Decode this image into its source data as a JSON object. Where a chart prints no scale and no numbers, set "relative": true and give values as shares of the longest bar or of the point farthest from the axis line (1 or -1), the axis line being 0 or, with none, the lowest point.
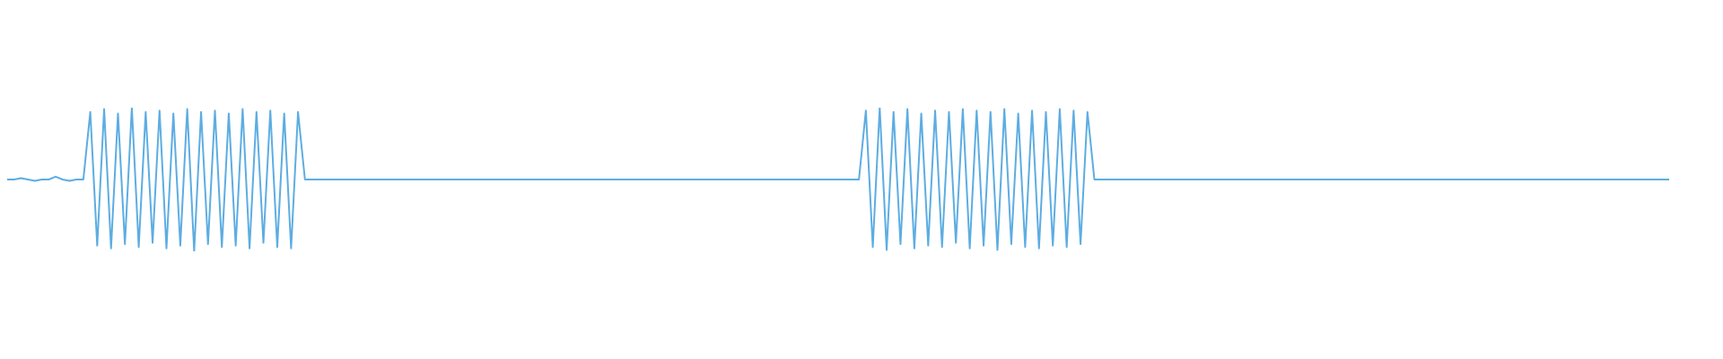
{
  "chart_data": {
    "type": "line",
    "relative": true,
    "color": "#5dade2",
    "legend": false,
    "marker": "none",
    "categories": [
      null,
      null,
      null,
      null,
      null,
      null,
      null,
      null,
      null,
      null,
      null,
      null,
      null,
      null,
      null,
      null,
      null,
      null,
      null,
      null,
      null,
      null,
      null,
      null,
      null,
      null,
      null,
      null,
      null,
      null,
      null,
      null,
      null,
      null,
      null,
      null,
      null,
      null,
      null,
      null,
      null,
      null,
      null,
      null,
      null,
      null,
      null,
      null,
      null,
      null,
      null,
      null,
      null,
      null,
      null,
      null,
      null,
      null,
      null,
      null,
      null,
      null,
      null,
      null,
      null,
      null,
      null,
      null,
      null,
      null,
      null,
      null,
      null,
      null,
      null,
      null,
      null,
      null,
      null,
      null,
      null,
      null,
      null,
      null,
      null,
      null,
      null,
      null,
      null,
      null,
      null,
      null,
      null,
      null,
      null,
      null,
      null,
      null,
      null,
      null,
      null,
      null,
      null,
      null,
      null,
      null,
      null,
      null,
      null,
      null,
      null,
      null,
      null,
      null,
      null,
      null,
      null,
      null,
      null,
      null,
      null,
      null,
      null,
      null,
      null,
      null,
      null,
      null,
      null,
      null,
      null,
      null,
      null,
      null,
      null,
      null,
      null,
      null,
      null,
      null,
      null,
      null,
      null,
      null,
      null,
      null,
      null,
      null,
      null,
      null,
      null,
      null,
      null,
      null,
      null,
      null,
      null,
      null,
      null,
      null,
      null,
      null,
      null,
      null,
      null,
      null,
      null,
      null,
      null,
      null,
      null,
      null,
      null,
      null,
      null,
      null,
      null,
      null,
      null,
      null,
      null,
      null,
      null,
      null,
      null,
      null,
      null,
      null,
      null,
      null,
      null,
      null,
      null,
      null,
      null,
      null,
      null,
      null,
      null,
      null,
      null,
      null,
      null,
      null,
      null,
      null,
      null,
      null,
      null,
      null,
      null,
      null,
      null,
      null,
      null,
      null,
      null,
      null,
      null,
      null,
      null,
      null,
      null,
      null,
      null,
      null,
      null,
      null,
      null,
      null,
      null,
      null,
      null,
      null,
      null,
      null,
      null,
      null,
      null,
      null,
      null
    ],
    "values": [
      0.5,
      0.5,
      0.51,
      0.5,
      0.49,
      0.5,
      0.5,
      0.52,
      0.5,
      0.49,
      0.5,
      0.5,
      0.97,
      0.04,
      0.99,
      0.02,
      0.96,
      0.05,
      1,
      0.03,
      0.97,
      0.06,
      0.98,
      0.02,
      0.96,
      0.04,
      0.99,
      0,
      0.97,
      0.05,
      0.98,
      0.03,
      0.96,
      0.04,
      0.99,
      0.02,
      0.97,
      0.06,
      0.98,
      0.03,
      0.96,
      0.02,
      0.97,
      0.5,
      0.5,
      0.5,
      0.5,
      0.5,
      0.5,
      0.5,
      0.5,
      0.5,
      0.5,
      0.5,
      0.5,
      0.5,
      0.5,
      0.5,
      0.5,
      0.5,
      0.5,
      0.5,
      0.5,
      0.5,
      0.5,
      0.5,
      0.5,
      0.5,
      0.5,
      0.5,
      0.5,
      0.5,
      0.5,
      0.5,
      0.5,
      0.5,
      0.5,
      0.5,
      0.5,
      0.5,
      0.5,
      0.5,
      0.5,
      0.5,
      0.5,
      0.5,
      0.5,
      0.5,
      0.5,
      0.5,
      0.5,
      0.5,
      0.5,
      0.5,
      0.5,
      0.5,
      0.5,
      0.5,
      0.5,
      0.5,
      0.5,
      0.5,
      0.5,
      0.5,
      0.5,
      0.5,
      0.5,
      0.5,
      0.5,
      0.5,
      0.5,
      0.5,
      0.5,
      0.5,
      0.5,
      0.5,
      0.5,
      0.5,
      0.5,
      0.5,
      0.5,
      0.5,
      0.5,
      0.5,
      0.98,
      0.03,
      1,
      0.01,
      0.97,
      0.05,
      0.99,
      0.02,
      0.96,
      0.04,
      0.98,
      0.03,
      0.97,
      0.06,
      0.99,
      0.02,
      0.98,
      0.04,
      0.97,
      0.01,
      0.99,
      0.05,
      0.96,
      0.03,
      0.98,
      0.02,
      0.97,
      0.04,
      0.99,
      0.03,
      0.98,
      0.05,
      0.97,
      0.5,
      0.5,
      0.5,
      0.5,
      0.5,
      0.5,
      0.5,
      0.5,
      0.5,
      0.5,
      0.5,
      0.5,
      0.5,
      0.5,
      0.5,
      0.5,
      0.5,
      0.5,
      0.5,
      0.5,
      0.5,
      0.5,
      0.5,
      0.5,
      0.5,
      0.5,
      0.5,
      0.5,
      0.5,
      0.5,
      0.5,
      0.5,
      0.5,
      0.5,
      0.5,
      0.5,
      0.5,
      0.5,
      0.5,
      0.5,
      0.5,
      0.5,
      0.5,
      0.5,
      0.5,
      0.5,
      0.5,
      0.5,
      0.5,
      0.5,
      0.5,
      0.5,
      0.5,
      0.5,
      0.5,
      0.5,
      0.5,
      0.5,
      0.5,
      0.5,
      0.5,
      0.5,
      0.5,
      0.5,
      0.5,
      0.5,
      0.5,
      0.5,
      0.5,
      0.5,
      0.5,
      0.5,
      0.5,
      0.5,
      0.5,
      0.5,
      0.5,
      0.5,
      0.5,
      0.5,
      0.5,
      0.5,
      0.5,
      0.5
    ]
  }
}
